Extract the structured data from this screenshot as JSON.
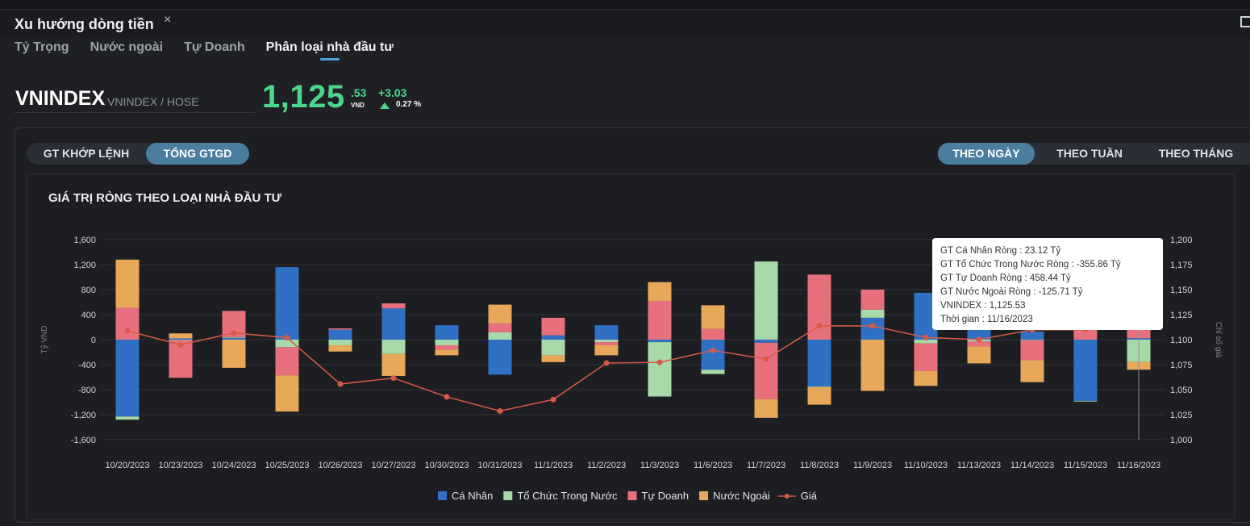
{
  "window": {
    "title": "Xu hướng dòng tiền",
    "close_glyph": "×",
    "expand_icon": "expand-icon"
  },
  "tabs": [
    {
      "label": "Tỷ Trọng",
      "active": false
    },
    {
      "label": "Nước ngoài",
      "active": false
    },
    {
      "label": "Tự Doanh",
      "active": false
    },
    {
      "label": "Phân loại nhà đầu tư",
      "active": true
    }
  ],
  "ticker": {
    "symbol": "VNINDEX",
    "exchange": "VNINDEX / HOSE",
    "price_int": "1,125",
    "price_dec": ".53",
    "unit": "VND",
    "change": "+3.03",
    "change_pct": "0.27 %",
    "up_color": "#4cd68b"
  },
  "value_toggle": [
    {
      "label": "GT KHỚP LỆNH",
      "active": false
    },
    {
      "label": "TỔNG GTGD",
      "active": true
    }
  ],
  "period_toggle": [
    {
      "label": "THEO NGÀY",
      "active": true
    },
    {
      "label": "THEO TUẦN",
      "active": false
    },
    {
      "label": "THEO THÁNG",
      "active": false
    }
  ],
  "chart_title": "GIÁ TRỊ RÒNG THEO LOẠI NHÀ ĐẦU TƯ",
  "tooltip": {
    "lines": [
      "GT Cá Nhân Ròng  : 23.12 Tỷ",
      "GT Tổ Chức Trong Nước Ròng : -355.86 Tỷ",
      "GT Tự Doanh Ròng : 458.44 Tỷ",
      "GT Nước Ngoài Ròng : -125.71 Tỷ",
      "VNINDEX : 1,125.53",
      "Thời gian : 11/16/2023"
    ]
  },
  "chart_data": {
    "type": "bar",
    "stacked": true,
    "categories": [
      "10/20/2023",
      "10/23/2023",
      "10/24/2023",
      "10/25/2023",
      "10/26/2023",
      "10/27/2023",
      "10/30/2023",
      "10/31/2023",
      "11/1/2023",
      "11/2/2023",
      "11/3/2023",
      "11/6/2023",
      "11/7/2023",
      "11/8/2023",
      "11/9/2023",
      "11/10/2023",
      "11/13/2023",
      "11/14/2023",
      "11/15/2023",
      "11/16/2023"
    ],
    "ylabel": "Tỷ VND",
    "y2label": "Chỉ số giá",
    "ylim": [
      -1600,
      1600
    ],
    "yticks": [
      "1,600",
      "1,200",
      "800",
      "400",
      "0",
      "-400",
      "-800",
      "-1,200",
      "-1,600"
    ],
    "y2lim": [
      1000,
      1200
    ],
    "y2ticks": [
      "1,200",
      "1,175",
      "1,150",
      "1,125",
      "1,100",
      "1,075",
      "1,050",
      "1,025",
      "1,000"
    ],
    "legend_position": "bottom-center",
    "series": [
      {
        "name": "Cá Nhân",
        "color": "#2f6fc4",
        "values": [
          -1230,
          20,
          30,
          1160,
          160,
          500,
          230,
          -560,
          70,
          230,
          -40,
          -480,
          -50,
          -750,
          350,
          750,
          250,
          130,
          -980,
          23.12
        ]
      },
      {
        "name": "Tổ Chức Trong Nước",
        "color": "#a8d9a8",
        "values": [
          -50,
          -10,
          10,
          -120,
          -90,
          -230,
          -90,
          120,
          -250,
          -40,
          -870,
          -70,
          1250,
          -10,
          130,
          -60,
          -30,
          -10,
          -10,
          -355.86
        ]
      },
      {
        "name": "Tự Doanh",
        "color": "#e8707c",
        "values": [
          510,
          -600,
          420,
          -450,
          20,
          80,
          -70,
          140,
          280,
          -50,
          620,
          170,
          -900,
          1040,
          320,
          -440,
          -80,
          -320,
          180,
          458.44
        ]
      },
      {
        "name": "Nước Ngoài",
        "color": "#e8a85a",
        "values": [
          770,
          80,
          -450,
          -580,
          -100,
          -350,
          -90,
          300,
          -110,
          -160,
          300,
          380,
          -300,
          -280,
          -820,
          -240,
          -270,
          -350,
          90,
          -125.71
        ]
      }
    ],
    "line": {
      "name": "Giá",
      "color": "#d75a48",
      "values": [
        1108.8,
        1094.9,
        1106.7,
        1101.9,
        1055.6,
        1061.6,
        1042.8,
        1028.6,
        1040.1,
        1076.6,
        1077.3,
        1089.3,
        1080.6,
        1113.8,
        1113.7,
        1102.1,
        1100.1,
        1109.9,
        1109.9,
        1125.53
      ]
    }
  }
}
